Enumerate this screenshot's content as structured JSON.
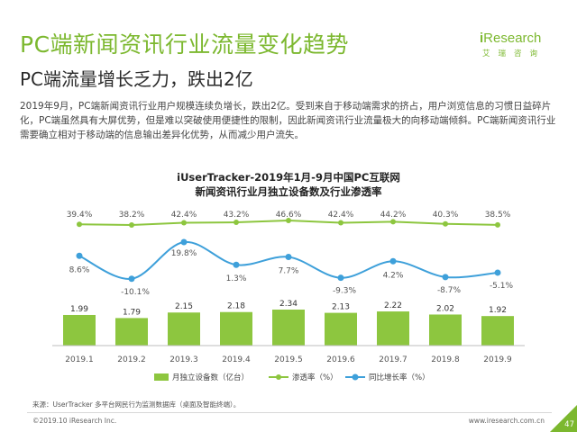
{
  "page": {
    "title": "PC端新闻资讯行业流量变化趋势",
    "subtitle": "PC端流量增长乏力，跌出2亿",
    "body": "2019年9月，PC端新闻资讯行业用户规模连续负增长，跌出2亿。受到来自于移动端需求的挤占，用户浏览信息的习惯日益碎片化，PC端虽然具有大屏优势，但是难以突破使用便捷性的限制，因此新闻资讯行业流量极大的向移动端倾斜。PC端新闻资讯行业需要确立相对于移动端的信息输出差异化优势，从而减少用户流失。",
    "source": "来源：UserTracker 多平台网民行为监测数据库（桌面及智能终端）。",
    "copyright": "©2019.10 iResearch Inc.",
    "url": "www.iresearch.com.cn",
    "page_number": "47"
  },
  "logo": {
    "brand_prefix": "i",
    "brand_rest": "Research",
    "sub": "艾瑞咨询"
  },
  "colors": {
    "brand": "#7cb82f",
    "bar": "#8dc63f",
    "penetration_line": "#8dc63f",
    "growth_line": "#3ea0da"
  },
  "chart_data": {
    "type": "bar",
    "title_line1": "iUserTracker-2019年1月-9月中国PC互联网",
    "title_line2": "新闻资讯行业月独立设备数及行业渗透率",
    "categories": [
      "2019.1",
      "2019.2",
      "2019.3",
      "2019.4",
      "2019.5",
      "2019.6",
      "2019.7",
      "2019.8",
      "2019.9"
    ],
    "series": [
      {
        "name": "月独立设备数（亿台）",
        "type": "bar",
        "values": [
          1.99,
          1.79,
          2.15,
          2.18,
          2.34,
          2.13,
          2.22,
          2.02,
          1.92
        ],
        "labels": [
          "1.99",
          "1.79",
          "2.15",
          "2.18",
          "2.34",
          "2.13",
          "2.22",
          "2.02",
          "1.92"
        ]
      },
      {
        "name": "渗透率（%）",
        "type": "line",
        "values": [
          39.4,
          38.2,
          42.4,
          43.2,
          46.6,
          42.4,
          44.2,
          40.3,
          38.5
        ],
        "labels": [
          "39.4%",
          "38.2%",
          "42.4%",
          "43.2%",
          "46.6%",
          "42.4%",
          "44.2%",
          "40.3%",
          "38.5%"
        ]
      },
      {
        "name": "同比增长率（%）",
        "type": "line",
        "values": [
          8.6,
          -10.1,
          19.8,
          1.3,
          7.7,
          -9.3,
          4.2,
          -8.7,
          -5.1
        ],
        "labels": [
          "8.6%",
          "-10.1%",
          "19.8%",
          "1.3%",
          "7.7%",
          "-9.3%",
          "4.2%",
          "-8.7%",
          "-5.1%"
        ]
      }
    ],
    "xlabel": "",
    "ylabel": "",
    "grid": false,
    "legend_position": "bottom"
  }
}
